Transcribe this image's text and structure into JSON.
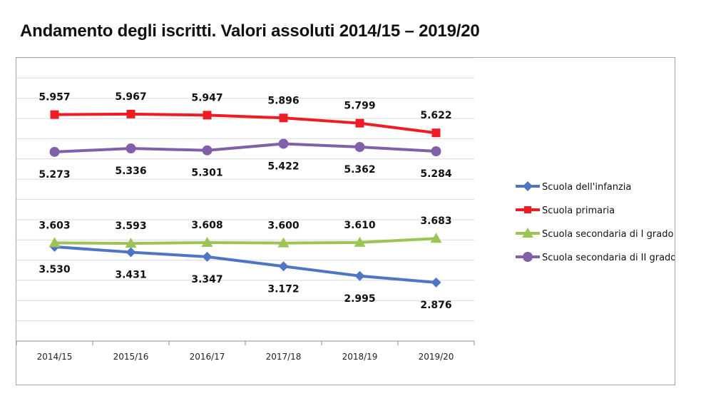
{
  "page": {
    "title": "Andamento degli iscritti. Valori assoluti 2014/15 – 2019/20"
  },
  "chart_data": {
    "type": "line",
    "title": "Andamento degli iscritti. Valori assoluti 2014/15 – 2019/20",
    "xlabel": "",
    "ylabel": "",
    "categories": [
      "2014/15",
      "2015/16",
      "2016/17",
      "2017/18",
      "2018/19",
      "2019/20"
    ],
    "ylim": [
      1800,
      7000
    ],
    "grid": true,
    "legend_position": "right",
    "series": [
      {
        "name": "Scuola dell'infanzia",
        "color": "#4f76c4",
        "marker": "diamond",
        "values": [
          3530,
          3431,
          3347,
          3172,
          2995,
          2876
        ],
        "labels": [
          "3.530",
          "3.431",
          "3.347",
          "3.172",
          "2.995",
          "2.876"
        ],
        "label_position": "below"
      },
      {
        "name": "Scuola primaria",
        "color": "#ee1c25",
        "marker": "square",
        "values": [
          5957,
          5967,
          5947,
          5896,
          5799,
          5622
        ],
        "labels": [
          "5.957",
          "5.967",
          "5.947",
          "5.896",
          "5.799",
          "5.622"
        ],
        "label_position": "above"
      },
      {
        "name": "Scuola secondaria di I grado",
        "color": "#9bc454",
        "marker": "triangle",
        "values": [
          3603,
          3593,
          3608,
          3600,
          3610,
          3683
        ],
        "labels": [
          "3.603",
          "3.593",
          "3.608",
          "3.600",
          "3.610",
          "3.683"
        ],
        "label_position": "above"
      },
      {
        "name": "Scuola secondaria di II grado",
        "color": "#8060a8",
        "marker": "circle",
        "values": [
          5273,
          5336,
          5301,
          5422,
          5362,
          5284
        ],
        "labels": [
          "5.273",
          "5.336",
          "5.301",
          "5.422",
          "5.362",
          "5.284"
        ],
        "label_position": "below"
      }
    ]
  }
}
